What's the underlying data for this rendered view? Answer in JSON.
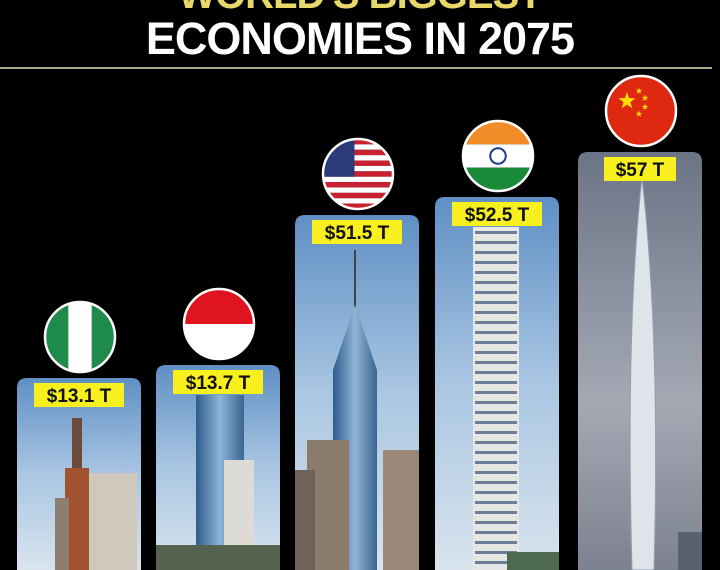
{
  "chart_data": {
    "type": "bar",
    "title_line1": "WORLD'S BIGGEST",
    "title_line2": "ECONOMIES IN 2075",
    "categories": [
      "Nigeria",
      "Indonesia",
      "United States",
      "India",
      "China"
    ],
    "values": [
      13.1,
      13.7,
      51.5,
      52.5,
      57
    ],
    "unit": "T",
    "data_labels": [
      "$13.1 T",
      "$13.7 T",
      "$51.5 T",
      "$52.5 T",
      "$57 T"
    ],
    "bar_style": "skyscraper photos",
    "label_color": "#f7f01e",
    "background": "#000000"
  }
}
